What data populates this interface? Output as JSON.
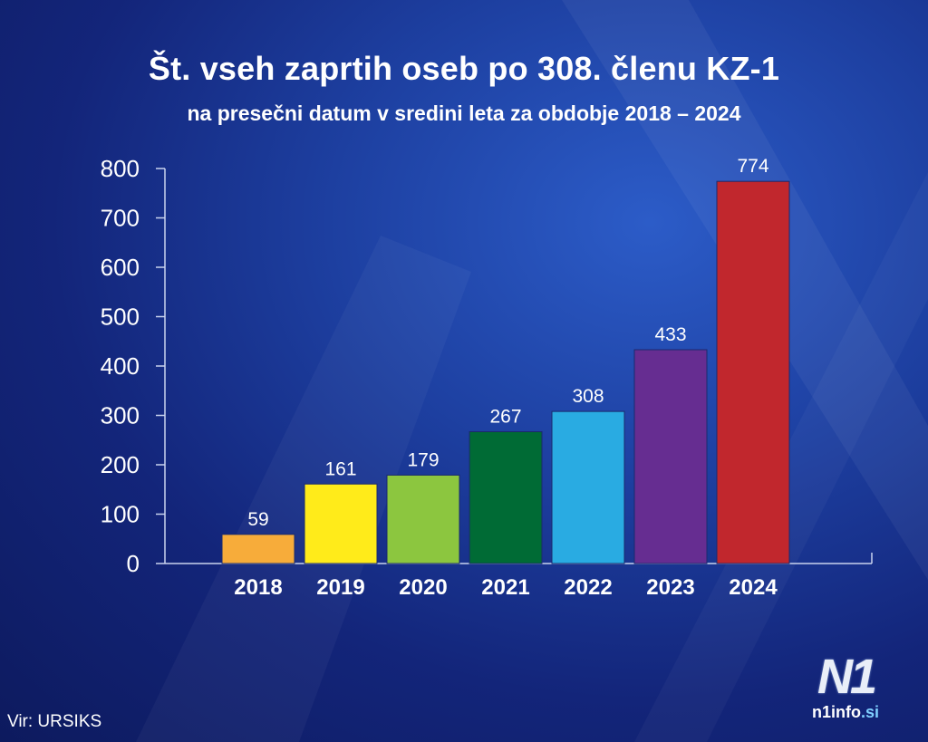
{
  "chart_data": {
    "type": "bar",
    "title": "Št. vseh zaprtih oseb po 308. členu KZ-1",
    "subtitle": "na presečni datum v sredini leta za obdobje 2018 – 2024",
    "categories": [
      "2018",
      "2019",
      "2020",
      "2021",
      "2022",
      "2023",
      "2024"
    ],
    "values": [
      59,
      161,
      179,
      267,
      308,
      433,
      774
    ],
    "colors": [
      "#f7ac3a",
      "#ffeb1a",
      "#8cc63f",
      "#006b35",
      "#29abe2",
      "#662d91",
      "#c1272d"
    ],
    "yticks": [
      0,
      100,
      200,
      300,
      400,
      500,
      600,
      700,
      800
    ],
    "ylim": [
      0,
      800
    ],
    "xlabel": "",
    "ylabel": "",
    "grid": false,
    "legend": "none"
  },
  "source": "Vir: URSIKS",
  "logo": {
    "mark": "N1",
    "text_main": "n1info",
    "text_dot": ".si"
  }
}
